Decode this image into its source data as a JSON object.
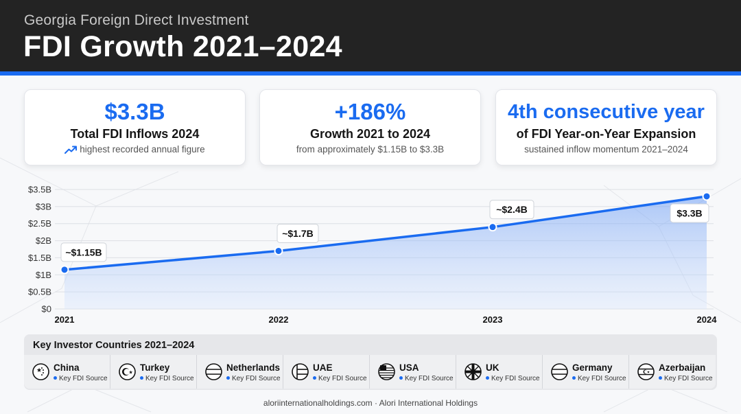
{
  "header": {
    "subtitle": "Georgia Foreign Direct Investment",
    "title": "FDI Growth 2021–2024"
  },
  "cards": [
    {
      "big": "$3.3B",
      "label": "Total FDI Inflows 2024",
      "sub": "highest recorded annual figure",
      "icon": "trend-up-icon"
    },
    {
      "big": "+186%",
      "label": "Growth 2021 to 2024",
      "sub": "from approximately $1.15B to $3.3B"
    },
    {
      "big": "4th consecutive year",
      "label": "of FDI Year-on-Year Expansion",
      "sub": "sustained inflow momentum 2021–2024"
    }
  ],
  "chart_data": {
    "type": "area",
    "x": [
      "2021",
      "2022",
      "2023",
      "2024"
    ],
    "values": [
      1.15,
      1.7,
      2.4,
      3.3
    ],
    "data_labels": [
      "~$1.15B",
      "~$1.7B",
      "~$2.4B",
      "$3.3B"
    ],
    "y_ticks": [
      "$0",
      "$0.5B",
      "$1B",
      "$1.5B",
      "$2B",
      "$2.5B",
      "$3B",
      "$3.5B"
    ],
    "ylim": [
      0,
      3.5
    ],
    "grid": true,
    "line_color": "#1a6bf0",
    "fill_color": "#b9d1fb"
  },
  "countries": {
    "title": "Key Investor Countries 2021–2024",
    "tag": "Key FDI Source",
    "items": [
      {
        "name": "China",
        "icon": "china-flag-icon"
      },
      {
        "name": "Turkey",
        "icon": "turkey-flag-icon"
      },
      {
        "name": "Netherlands",
        "icon": "netherlands-flag-icon"
      },
      {
        "name": "UAE",
        "icon": "uae-flag-icon"
      },
      {
        "name": "USA",
        "icon": "usa-flag-icon"
      },
      {
        "name": "UK",
        "icon": "uk-flag-icon"
      },
      {
        "name": "Germany",
        "icon": "germany-flag-icon"
      },
      {
        "name": "Azerbaijan",
        "icon": "azerbaijan-flag-icon"
      }
    ]
  },
  "footer": "aloriinternationalholdings.com · Alori International Holdings",
  "colors": {
    "accent": "#1a6bf0",
    "header_bg": "#232323"
  }
}
